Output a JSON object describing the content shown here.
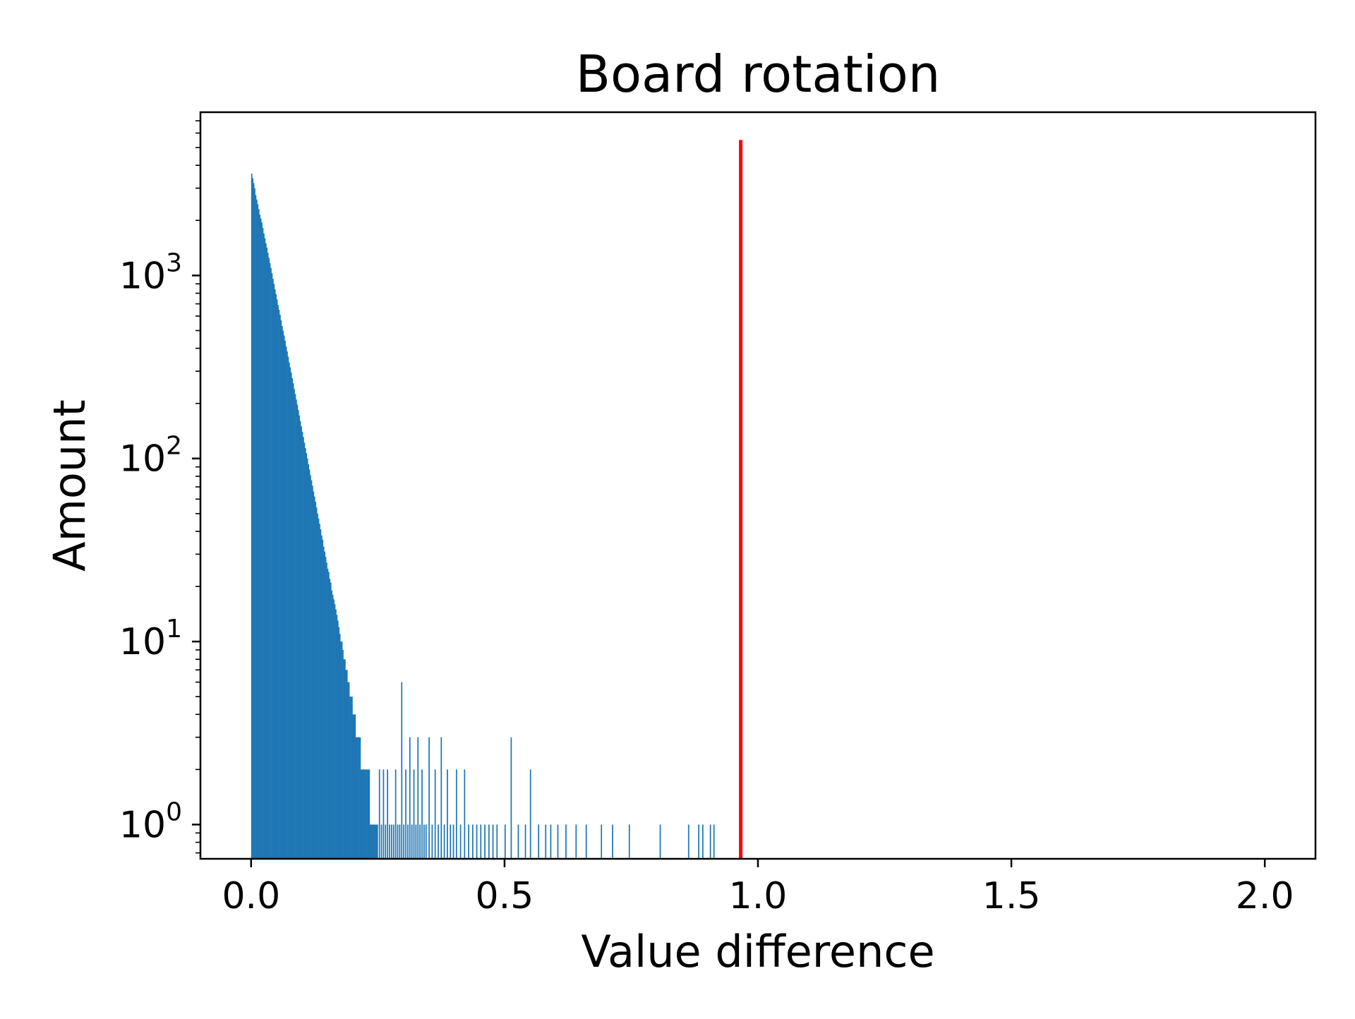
{
  "chart_data": {
    "type": "bar",
    "subtype": "histogram",
    "title": "Board rotation",
    "xlabel": "Value difference",
    "ylabel": "Amount",
    "xlim": [
      -0.1,
      2.1
    ],
    "ylim": [
      0.65,
      7800
    ],
    "yscale": "log",
    "grid": false,
    "legend": "none",
    "x_ticks": [
      {
        "value": 0.0,
        "label": "0.0"
      },
      {
        "value": 0.5,
        "label": "0.5"
      },
      {
        "value": 1.0,
        "label": "1.0"
      },
      {
        "value": 1.5,
        "label": "1.5"
      },
      {
        "value": 2.0,
        "label": "2.0"
      }
    ],
    "y_ticks": [
      {
        "value": 1,
        "base": "10",
        "exponent": "0"
      },
      {
        "value": 10,
        "base": "10",
        "exponent": "1"
      },
      {
        "value": 100,
        "base": "10",
        "exponent": "2"
      },
      {
        "value": 1000,
        "base": "10",
        "exponent": "3"
      }
    ],
    "bar_color": "#1f77b4",
    "threshold_line": {
      "x": 0.966,
      "y_top": 5500,
      "color": "#ff0000"
    },
    "series": [
      {
        "bin_width": 0.002,
        "bins": [
          [
            0.0,
            3600
          ],
          [
            0.002,
            3400
          ],
          [
            0.004,
            3200
          ],
          [
            0.006,
            3000
          ],
          [
            0.008,
            2750
          ],
          [
            0.01,
            2600
          ],
          [
            0.012,
            2450
          ],
          [
            0.014,
            2300
          ],
          [
            0.016,
            2150
          ],
          [
            0.018,
            2050
          ],
          [
            0.02,
            1950
          ],
          [
            0.022,
            1820
          ],
          [
            0.024,
            1700
          ],
          [
            0.026,
            1600
          ],
          [
            0.028,
            1500
          ],
          [
            0.03,
            1420
          ],
          [
            0.032,
            1330
          ],
          [
            0.034,
            1250
          ],
          [
            0.036,
            1170
          ],
          [
            0.038,
            1100
          ],
          [
            0.04,
            1030
          ],
          [
            0.042,
            960
          ],
          [
            0.044,
            900
          ],
          [
            0.046,
            840
          ],
          [
            0.048,
            790
          ],
          [
            0.05,
            740
          ],
          [
            0.052,
            690
          ],
          [
            0.054,
            650
          ],
          [
            0.056,
            610
          ],
          [
            0.058,
            570
          ],
          [
            0.06,
            530
          ],
          [
            0.062,
            500
          ],
          [
            0.064,
            470
          ],
          [
            0.066,
            440
          ],
          [
            0.068,
            410
          ],
          [
            0.07,
            385
          ],
          [
            0.072,
            360
          ],
          [
            0.074,
            335
          ],
          [
            0.076,
            315
          ],
          [
            0.078,
            295
          ],
          [
            0.08,
            275
          ],
          [
            0.082,
            258
          ],
          [
            0.084,
            240
          ],
          [
            0.086,
            225
          ],
          [
            0.088,
            210
          ],
          [
            0.09,
            197
          ],
          [
            0.092,
            184
          ],
          [
            0.094,
            172
          ],
          [
            0.096,
            160
          ],
          [
            0.098,
            150
          ],
          [
            0.1,
            140
          ],
          [
            0.102,
            131
          ],
          [
            0.104,
            122
          ],
          [
            0.106,
            114
          ],
          [
            0.108,
            107
          ],
          [
            0.11,
            100
          ],
          [
            0.112,
            93
          ],
          [
            0.114,
            87
          ],
          [
            0.116,
            81
          ],
          [
            0.118,
            76
          ],
          [
            0.12,
            71
          ],
          [
            0.122,
            66
          ],
          [
            0.124,
            62
          ],
          [
            0.126,
            58
          ],
          [
            0.128,
            54
          ],
          [
            0.13,
            50
          ],
          [
            0.132,
            47
          ],
          [
            0.134,
            44
          ],
          [
            0.136,
            41
          ],
          [
            0.138,
            38
          ],
          [
            0.14,
            36
          ],
          [
            0.142,
            33
          ],
          [
            0.144,
            31
          ],
          [
            0.146,
            29
          ],
          [
            0.148,
            27
          ],
          [
            0.15,
            25
          ],
          [
            0.152,
            24
          ],
          [
            0.154,
            22
          ],
          [
            0.156,
            21
          ],
          [
            0.158,
            19
          ],
          [
            0.16,
            18
          ],
          [
            0.162,
            17
          ],
          [
            0.164,
            16
          ],
          [
            0.166,
            15
          ],
          [
            0.168,
            14
          ],
          [
            0.17,
            13
          ],
          [
            0.172,
            12
          ],
          [
            0.174,
            11
          ],
          [
            0.176,
            10
          ],
          [
            0.178,
            10
          ],
          [
            0.18,
            9
          ],
          [
            0.182,
            8
          ],
          [
            0.184,
            8
          ],
          [
            0.186,
            7
          ],
          [
            0.188,
            7
          ],
          [
            0.19,
            6
          ],
          [
            0.192,
            6
          ],
          [
            0.194,
            5
          ],
          [
            0.196,
            5
          ],
          [
            0.198,
            5
          ],
          [
            0.2,
            4
          ],
          [
            0.202,
            4
          ],
          [
            0.204,
            4
          ],
          [
            0.206,
            3
          ],
          [
            0.208,
            3
          ],
          [
            0.21,
            3
          ],
          [
            0.212,
            3
          ],
          [
            0.214,
            3
          ],
          [
            0.216,
            2
          ],
          [
            0.218,
            2
          ],
          [
            0.22,
            2
          ],
          [
            0.222,
            2
          ],
          [
            0.224,
            2
          ],
          [
            0.226,
            2
          ],
          [
            0.228,
            2
          ],
          [
            0.23,
            2
          ],
          [
            0.232,
            2
          ],
          [
            0.234,
            1
          ],
          [
            0.236,
            1
          ],
          [
            0.238,
            1
          ],
          [
            0.24,
            1
          ],
          [
            0.242,
            1
          ],
          [
            0.244,
            1
          ],
          [
            0.246,
            1
          ],
          [
            0.248,
            1
          ],
          [
            0.252,
            2
          ],
          [
            0.256,
            1
          ],
          [
            0.26,
            2
          ],
          [
            0.264,
            1
          ],
          [
            0.268,
            2
          ],
          [
            0.272,
            1
          ],
          [
            0.276,
            1
          ],
          [
            0.28,
            1
          ],
          [
            0.284,
            2
          ],
          [
            0.288,
            1
          ],
          [
            0.292,
            1
          ],
          [
            0.296,
            6
          ],
          [
            0.3,
            1
          ],
          [
            0.304,
            2
          ],
          [
            0.308,
            1
          ],
          [
            0.312,
            3
          ],
          [
            0.316,
            1
          ],
          [
            0.32,
            2
          ],
          [
            0.324,
            1
          ],
          [
            0.328,
            3
          ],
          [
            0.332,
            1
          ],
          [
            0.336,
            2
          ],
          [
            0.34,
            1
          ],
          [
            0.344,
            1
          ],
          [
            0.35,
            3
          ],
          [
            0.356,
            1
          ],
          [
            0.362,
            2
          ],
          [
            0.368,
            1
          ],
          [
            0.374,
            3
          ],
          [
            0.38,
            1
          ],
          [
            0.386,
            2
          ],
          [
            0.392,
            1
          ],
          [
            0.398,
            1
          ],
          [
            0.404,
            2
          ],
          [
            0.412,
            1
          ],
          [
            0.42,
            2
          ],
          [
            0.428,
            1
          ],
          [
            0.436,
            1
          ],
          [
            0.444,
            1
          ],
          [
            0.452,
            1
          ],
          [
            0.46,
            1
          ],
          [
            0.468,
            1
          ],
          [
            0.476,
            1
          ],
          [
            0.484,
            1
          ],
          [
            0.5,
            1
          ],
          [
            0.512,
            3
          ],
          [
            0.526,
            1
          ],
          [
            0.54,
            1
          ],
          [
            0.55,
            2
          ],
          [
            0.566,
            1
          ],
          [
            0.58,
            1
          ],
          [
            0.59,
            1
          ],
          [
            0.604,
            1
          ],
          [
            0.62,
            1
          ],
          [
            0.64,
            1
          ],
          [
            0.66,
            1
          ],
          [
            0.69,
            1
          ],
          [
            0.712,
            1
          ],
          [
            0.745,
            1
          ],
          [
            0.806,
            1
          ],
          [
            0.862,
            1
          ],
          [
            0.882,
            1
          ],
          [
            0.89,
            1
          ],
          [
            0.905,
            1
          ],
          [
            0.912,
            1
          ]
        ]
      }
    ]
  }
}
